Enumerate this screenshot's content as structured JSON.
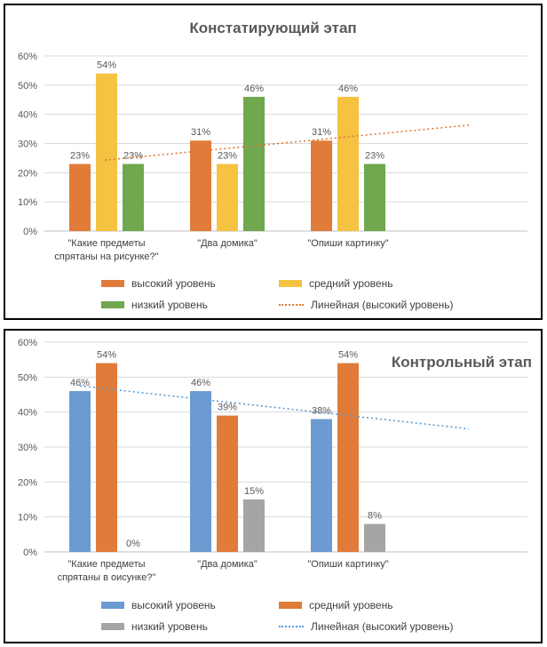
{
  "chart_data": [
    {
      "type": "bar",
      "title": "Констатирующий этап",
      "categories": [
        [
          "\"Какие предметы",
          "спрятаны на рисунке?\""
        ],
        [
          "\"Два домика\""
        ],
        [
          "\"Опиши картинку\""
        ]
      ],
      "ylim": [
        0,
        60
      ],
      "yticks": [
        "0%",
        "10%",
        "20%",
        "30%",
        "40%",
        "50%",
        "60%"
      ],
      "grid": true,
      "series": [
        {
          "name": "высокий уровень",
          "values": [
            23,
            31,
            31
          ],
          "labels": [
            "23%",
            "31%",
            "31%"
          ],
          "color": "#E07B39"
        },
        {
          "name": "средний уровень",
          "values": [
            54,
            23,
            46
          ],
          "labels": [
            "54%",
            "23%",
            "46%"
          ],
          "color": "#F5C242"
        },
        {
          "name": "низкий уровень",
          "values": [
            23,
            46,
            23
          ],
          "labels": [
            "23%",
            "46%",
            "23%"
          ],
          "color": "#6FA84F"
        }
      ],
      "trendline": {
        "name": "Линейная (высокий уровень)",
        "color": "#E07B39",
        "start": 24.3,
        "end": 36.3
      },
      "legend": "bottom"
    },
    {
      "type": "bar",
      "title": "Контрольный этап",
      "categories": [
        [
          "\"Какие предметы",
          "спрятаны в оисунке?\""
        ],
        [
          "\"Два домика\""
        ],
        [
          "\"Опиши картинку\""
        ]
      ],
      "ylim": [
        0,
        60
      ],
      "yticks": [
        "0%",
        "10%",
        "20%",
        "30%",
        "40%",
        "50%",
        "60%"
      ],
      "grid": true,
      "series": [
        {
          "name": "высокий уровень",
          "values": [
            46,
            46,
            38
          ],
          "labels": [
            "46%",
            "46%",
            "38%"
          ],
          "color": "#6B9BD1"
        },
        {
          "name": "средний уровень",
          "values": [
            54,
            39,
            54
          ],
          "labels": [
            "54%",
            "39%",
            "54%"
          ],
          "color": "#E07B39"
        },
        {
          "name": "низкий уровень",
          "values": [
            0,
            15,
            8
          ],
          "labels": [
            "0%",
            "15%",
            "8%"
          ],
          "color": "#A5A5A5"
        }
      ],
      "trendline": {
        "name": "Линейная (высокий уровень)",
        "color": "#5B9BD5",
        "start": 47.5,
        "end": 35.2
      },
      "legend": "bottom"
    }
  ]
}
